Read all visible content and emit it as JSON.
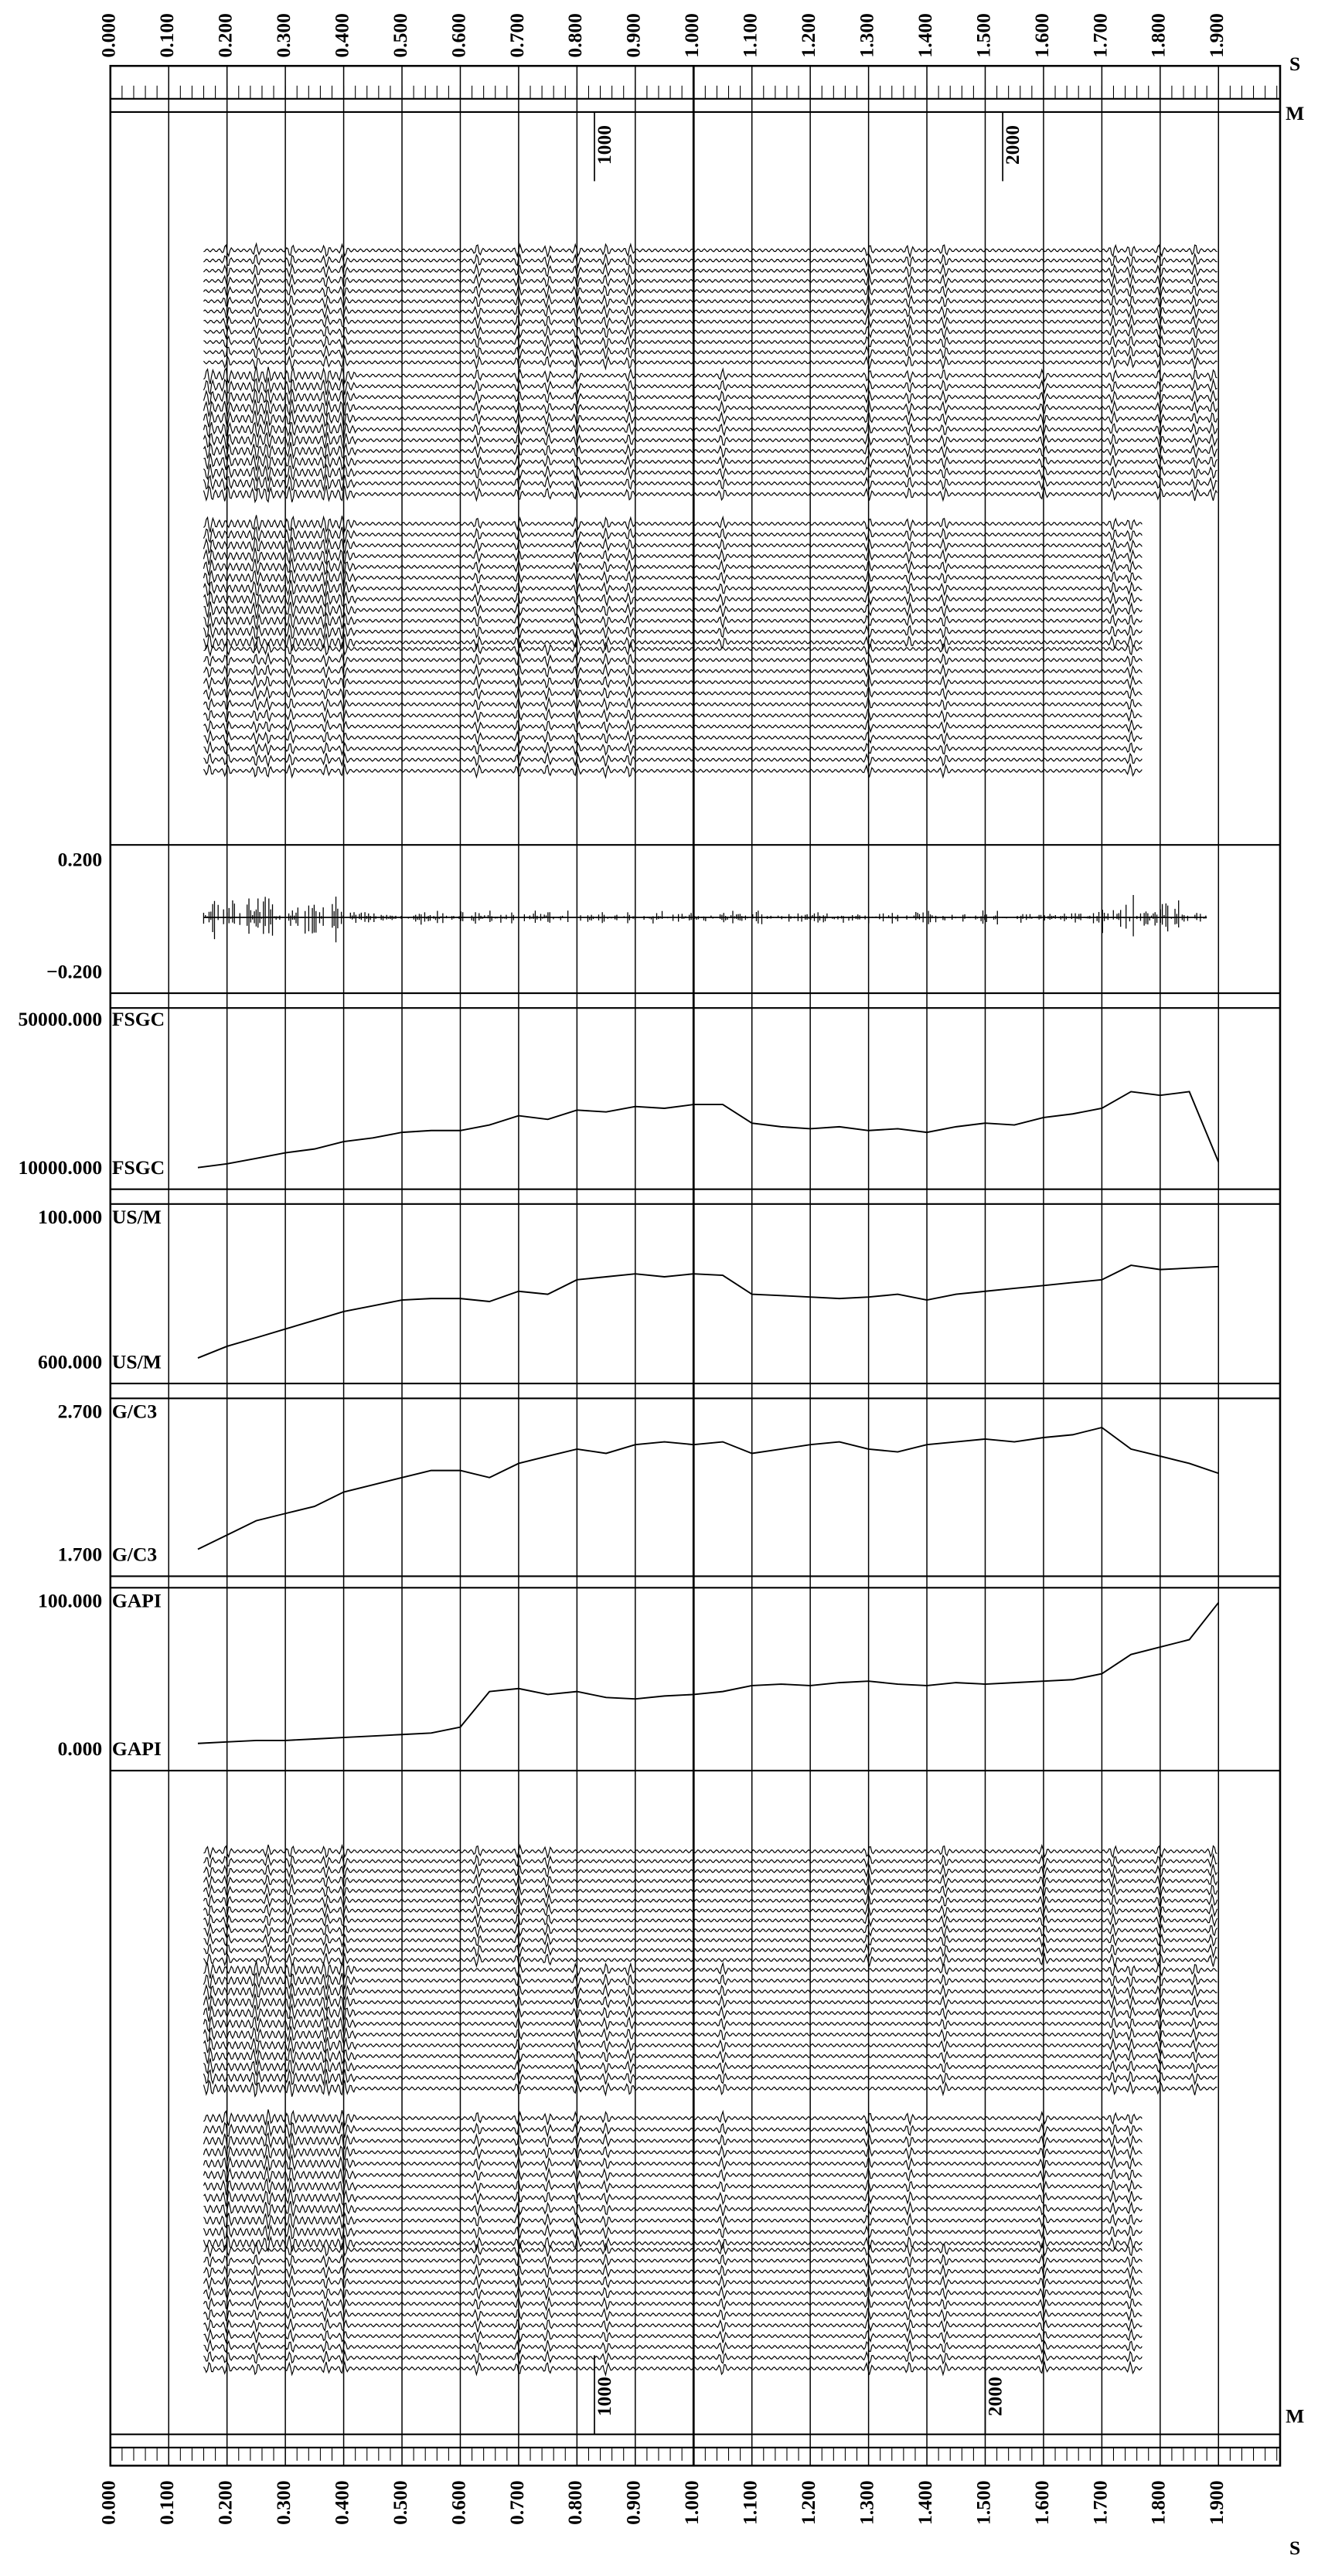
{
  "time_axis": {
    "unit": "S",
    "ticks": [
      {
        "value": 0,
        "label": "0.000"
      },
      {
        "value": 0.1,
        "label": "0.100"
      },
      {
        "value": 0.2,
        "label": "0.200"
      },
      {
        "value": 0.3,
        "label": "0.300"
      },
      {
        "value": 0.4,
        "label": "0.400"
      },
      {
        "value": 0.5,
        "label": "0.500"
      },
      {
        "value": 0.6,
        "label": "0.600"
      },
      {
        "value": 0.7,
        "label": "0.700"
      },
      {
        "value": 0.8,
        "label": "0.800"
      },
      {
        "value": 0.9,
        "label": "0.900"
      },
      {
        "value": 1.0,
        "label": "1.000"
      },
      {
        "value": 1.1,
        "label": "1.100"
      },
      {
        "value": 1.2,
        "label": "1.200"
      },
      {
        "value": 1.3,
        "label": "1.300"
      },
      {
        "value": 1.4,
        "label": "1.400"
      },
      {
        "value": 1.5,
        "label": "1.500"
      },
      {
        "value": 1.6,
        "label": "1.600"
      },
      {
        "value": 1.7,
        "label": "1.700"
      },
      {
        "value": 1.8,
        "label": "1.800"
      },
      {
        "value": 1.9,
        "label": "1.900"
      }
    ]
  },
  "depth_axis": {
    "unit": "M",
    "top_labels": [
      {
        "value": 1000,
        "label": "1000",
        "at_time": 0.83
      },
      {
        "value": 2000,
        "label": "2000",
        "at_time": 1.53
      }
    ],
    "bottom_labels": [
      {
        "value": 1000,
        "label": "1000",
        "at_time": 0.83
      },
      {
        "value": 2000,
        "label": "2000",
        "at_time": 1.5
      }
    ]
  },
  "log_times": [
    0.15,
    0.2,
    0.25,
    0.3,
    0.35,
    0.4,
    0.45,
    0.5,
    0.55,
    0.6,
    0.65,
    0.7,
    0.75,
    0.8,
    0.85,
    0.9,
    0.95,
    1.0,
    1.05,
    1.1,
    1.15,
    1.2,
    1.25,
    1.3,
    1.35,
    1.4,
    1.45,
    1.5,
    1.55,
    1.6,
    1.65,
    1.7,
    1.75,
    1.8,
    1.85,
    1.9
  ],
  "tracks": [
    {
      "top": {
        "value": 0.2,
        "label": "0.200"
      },
      "bottom": {
        "value": -0.2,
        "label": "−0.200"
      }
    },
    {
      "unit": "FSGC",
      "top": {
        "value": 50000,
        "label": "50000.000"
      },
      "bottom": {
        "value": 10000,
        "label": "10000.000"
      },
      "values": [
        10500,
        11500,
        13000,
        14500,
        15500,
        17500,
        18500,
        20000,
        20500,
        20500,
        22000,
        24500,
        23500,
        26000,
        25500,
        27000,
        26500,
        27500,
        27500,
        22500,
        21500,
        21000,
        21500,
        20500,
        21000,
        20000,
        21500,
        22500,
        22000,
        24000,
        25000,
        26500,
        31000,
        30000,
        31000,
        12000
      ]
    },
    {
      "unit": "US/M",
      "top": {
        "value": 100,
        "label": "100.000"
      },
      "bottom": {
        "value": 600,
        "label": "600.000"
      },
      "values": [
        580,
        540,
        510,
        480,
        450,
        420,
        400,
        380,
        375,
        375,
        385,
        350,
        360,
        310,
        300,
        290,
        300,
        290,
        295,
        360,
        365,
        370,
        375,
        370,
        360,
        380,
        360,
        350,
        340,
        330,
        320,
        310,
        260,
        275,
        270,
        265
      ]
    },
    {
      "unit": "G/C3",
      "top": {
        "value": 2.7,
        "label": "2.700"
      },
      "bottom": {
        "value": 1.7,
        "label": "1.700"
      },
      "values": [
        1.75,
        1.85,
        1.95,
        2.0,
        2.05,
        2.15,
        2.2,
        2.25,
        2.3,
        2.3,
        2.25,
        2.35,
        2.4,
        2.45,
        2.42,
        2.48,
        2.5,
        2.48,
        2.5,
        2.42,
        2.45,
        2.48,
        2.5,
        2.45,
        2.43,
        2.48,
        2.5,
        2.52,
        2.5,
        2.53,
        2.55,
        2.6,
        2.45,
        2.4,
        2.35,
        2.28
      ]
    },
    {
      "unit": "GAPI",
      "top": {
        "value": 100,
        "label": "100.000"
      },
      "bottom": {
        "value": 0,
        "label": "0.000"
      },
      "values": [
        5,
        6,
        7,
        7,
        8,
        9,
        10,
        11,
        12,
        16,
        40,
        42,
        38,
        40,
        36,
        35,
        37,
        38,
        40,
        44,
        45,
        44,
        46,
        47,
        45,
        44,
        46,
        45,
        46,
        47,
        48,
        52,
        65,
        70,
        75,
        100
      ]
    }
  ]
}
